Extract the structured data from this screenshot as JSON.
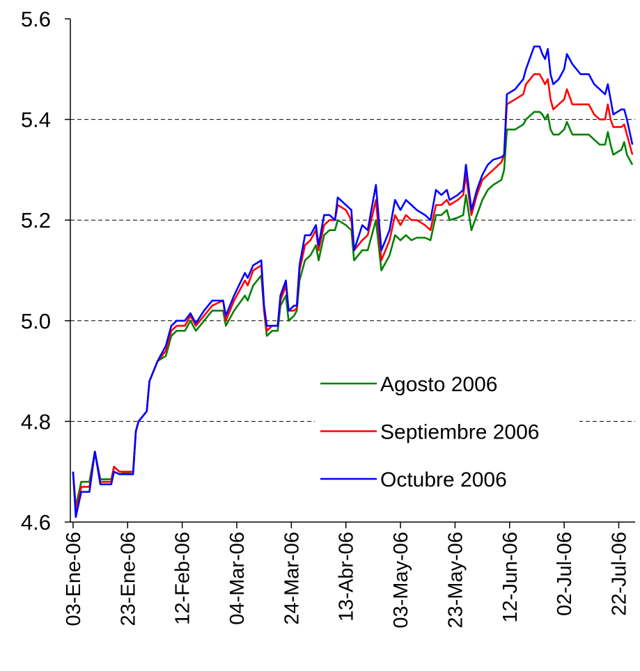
{
  "chart_data": {
    "type": "line",
    "x": [
      "2006-01-03",
      "2006-01-04",
      "2006-01-06",
      "2006-01-09",
      "2006-01-11",
      "2006-01-13",
      "2006-01-17",
      "2006-01-18",
      "2006-01-20",
      "2006-01-25",
      "2006-01-26",
      "2006-01-27",
      "2006-01-30",
      "2006-01-31",
      "2006-02-03",
      "2006-02-06",
      "2006-02-08",
      "2006-02-10",
      "2006-02-13",
      "2006-02-15",
      "2006-02-17",
      "2006-02-20",
      "2006-02-23",
      "2006-02-27",
      "2006-02-28",
      "2006-03-03",
      "2006-03-07",
      "2006-03-08",
      "2006-03-10",
      "2006-03-13",
      "2006-03-14",
      "2006-03-15",
      "2006-03-17",
      "2006-03-19",
      "2006-03-20",
      "2006-03-22",
      "2006-03-23",
      "2006-03-25",
      "2006-03-26",
      "2006-03-27",
      "2006-03-29",
      "2006-03-31",
      "2006-04-02",
      "2006-04-03",
      "2006-04-05",
      "2006-04-07",
      "2006-04-09",
      "2006-04-10",
      "2006-04-13",
      "2006-04-15",
      "2006-04-16",
      "2006-04-19",
      "2006-04-21",
      "2006-04-24",
      "2006-04-26",
      "2006-04-29",
      "2006-05-01",
      "2006-05-03",
      "2006-05-05",
      "2006-05-07",
      "2006-05-09",
      "2006-05-12",
      "2006-05-14",
      "2006-05-16",
      "2006-05-18",
      "2006-05-20",
      "2006-05-21",
      "2006-05-24",
      "2006-05-26",
      "2006-05-27",
      "2006-05-29",
      "2006-05-31",
      "2006-06-02",
      "2006-06-04",
      "2006-06-06",
      "2006-06-09",
      "2006-06-10",
      "2006-06-11",
      "2006-06-14",
      "2006-06-17",
      "2006-06-18",
      "2006-06-21",
      "2006-06-23",
      "2006-06-24",
      "2006-06-25",
      "2006-06-26",
      "2006-06-27",
      "2006-06-28",
      "2006-06-30",
      "2006-07-02",
      "2006-07-03",
      "2006-07-05",
      "2006-07-08",
      "2006-07-11",
      "2006-07-13",
      "2006-07-15",
      "2006-07-17",
      "2006-07-18",
      "2006-07-19",
      "2006-07-20",
      "2006-07-23",
      "2006-07-24",
      "2006-07-25",
      "2006-07-27"
    ],
    "series": [
      {
        "name": "Agosto 2006",
        "color": "#008000",
        "values": [
          4.7,
          4.63,
          4.68,
          4.68,
          4.74,
          4.685,
          4.685,
          4.71,
          4.7,
          4.695,
          4.78,
          4.8,
          4.82,
          4.88,
          4.92,
          4.93,
          4.97,
          4.98,
          4.98,
          5.0,
          4.98,
          5.0,
          5.02,
          5.02,
          4.99,
          5.02,
          5.05,
          5.04,
          5.07,
          5.09,
          5.02,
          4.97,
          4.98,
          4.98,
          5.03,
          5.05,
          5.0,
          5.01,
          5.02,
          5.08,
          5.12,
          5.13,
          5.15,
          5.12,
          5.17,
          5.18,
          5.18,
          5.2,
          5.19,
          5.18,
          5.12,
          5.14,
          5.14,
          5.2,
          5.1,
          5.13,
          5.17,
          5.16,
          5.17,
          5.16,
          5.165,
          5.165,
          5.16,
          5.21,
          5.21,
          5.22,
          5.2,
          5.205,
          5.21,
          5.25,
          5.18,
          5.21,
          5.24,
          5.26,
          5.27,
          5.28,
          5.3,
          5.38,
          5.38,
          5.39,
          5.4,
          5.415,
          5.415,
          5.41,
          5.4,
          5.41,
          5.38,
          5.37,
          5.37,
          5.38,
          5.395,
          5.37,
          5.37,
          5.37,
          5.36,
          5.35,
          5.35,
          5.375,
          5.35,
          5.33,
          5.34,
          5.355,
          5.33,
          5.31
        ]
      },
      {
        "name": "Septiembre 2006",
        "color": "#ff0000",
        "values": [
          4.7,
          4.62,
          4.67,
          4.67,
          4.74,
          4.68,
          4.68,
          4.71,
          4.7,
          4.7,
          4.78,
          4.8,
          4.82,
          4.88,
          4.92,
          4.94,
          4.98,
          4.99,
          4.99,
          5.01,
          4.99,
          5.01,
          5.03,
          5.04,
          5.0,
          5.04,
          5.08,
          5.07,
          5.1,
          5.11,
          5.02,
          4.98,
          4.99,
          4.99,
          5.04,
          5.07,
          5.02,
          5.02,
          5.025,
          5.1,
          5.15,
          5.16,
          5.18,
          5.14,
          5.19,
          5.2,
          5.2,
          5.23,
          5.22,
          5.2,
          5.14,
          5.16,
          5.17,
          5.24,
          5.12,
          5.16,
          5.21,
          5.19,
          5.21,
          5.2,
          5.2,
          5.19,
          5.18,
          5.23,
          5.23,
          5.24,
          5.23,
          5.24,
          5.25,
          5.29,
          5.21,
          5.25,
          5.28,
          5.29,
          5.3,
          5.315,
          5.33,
          5.43,
          5.44,
          5.45,
          5.47,
          5.49,
          5.49,
          5.48,
          5.47,
          5.48,
          5.44,
          5.42,
          5.43,
          5.44,
          5.46,
          5.43,
          5.43,
          5.43,
          5.41,
          5.4,
          5.4,
          5.43,
          5.4,
          5.385,
          5.385,
          5.39,
          5.37,
          5.33
        ]
      },
      {
        "name": "Octubre 2006",
        "color": "#0000ff",
        "values": [
          4.7,
          4.61,
          4.66,
          4.66,
          4.74,
          4.675,
          4.675,
          4.7,
          4.695,
          4.695,
          4.78,
          4.8,
          4.82,
          4.88,
          4.92,
          4.95,
          4.99,
          5.0,
          5.0,
          5.015,
          4.995,
          5.02,
          5.04,
          5.04,
          5.01,
          5.05,
          5.095,
          5.085,
          5.11,
          5.12,
          5.03,
          4.99,
          4.99,
          4.99,
          5.05,
          5.08,
          5.02,
          5.03,
          5.03,
          5.11,
          5.17,
          5.17,
          5.19,
          5.15,
          5.21,
          5.21,
          5.2,
          5.245,
          5.23,
          5.22,
          5.14,
          5.19,
          5.18,
          5.27,
          5.14,
          5.18,
          5.24,
          5.22,
          5.24,
          5.23,
          5.22,
          5.21,
          5.2,
          5.26,
          5.25,
          5.26,
          5.24,
          5.25,
          5.26,
          5.31,
          5.22,
          5.26,
          5.29,
          5.31,
          5.32,
          5.325,
          5.33,
          5.45,
          5.46,
          5.48,
          5.5,
          5.545,
          5.545,
          5.53,
          5.52,
          5.54,
          5.49,
          5.47,
          5.48,
          5.5,
          5.53,
          5.51,
          5.49,
          5.49,
          5.47,
          5.46,
          5.45,
          5.47,
          5.44,
          5.41,
          5.42,
          5.42,
          5.4,
          5.35
        ]
      }
    ],
    "xlim": [
      "2006-01-02",
      "2006-07-28"
    ],
    "xticks": [
      {
        "value": "2006-01-03",
        "label": "03-Ene-06"
      },
      {
        "value": "2006-01-23",
        "label": "23-Ene-06"
      },
      {
        "value": "2006-02-12",
        "label": "12-Feb-06"
      },
      {
        "value": "2006-03-04",
        "label": "04-Mar-06"
      },
      {
        "value": "2006-03-24",
        "label": "24-Mar-06"
      },
      {
        "value": "2006-04-13",
        "label": "13-Abr-06"
      },
      {
        "value": "2006-05-03",
        "label": "03-May-06"
      },
      {
        "value": "2006-05-23",
        "label": "23-May-06"
      },
      {
        "value": "2006-06-12",
        "label": "12-Jun-06"
      },
      {
        "value": "2006-07-02",
        "label": "02-Jul-06"
      },
      {
        "value": "2006-07-22",
        "label": "22-Jul-06"
      }
    ],
    "ylim": [
      4.6,
      5.6
    ],
    "yticks": [
      4.6,
      4.8,
      {
        "value": 5.0,
        "label": "5.0"
      },
      5.2,
      5.4,
      5.6
    ],
    "grid": true
  }
}
